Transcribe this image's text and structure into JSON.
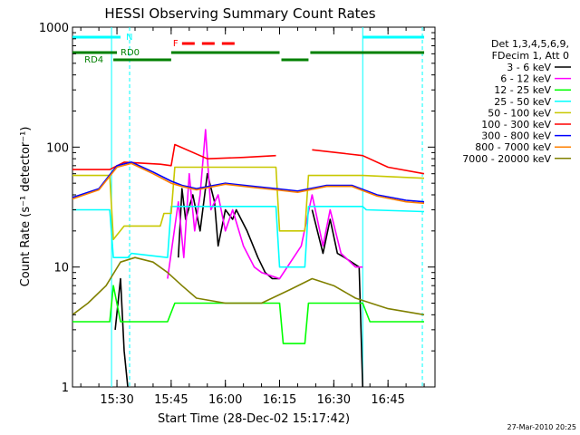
{
  "chart_data": {
    "type": "line",
    "title": "HESSI Observing Summary Count Rates",
    "xlabel": "Start Time (28-Dec-02 15:17:42)",
    "ylabel": "Count Rate (s⁻¹ detector⁻¹)",
    "y_scale": "log",
    "ylim": [
      1,
      1000
    ],
    "xlim_minutes": [
      "15:17:42",
      "16:58:00"
    ],
    "x_ticks": [
      "15:30",
      "15:45",
      "16:00",
      "16:15",
      "16:30",
      "16:45"
    ],
    "y_ticks": [
      "1",
      "10",
      "100",
      "1000"
    ],
    "legend_header": [
      "Det 1,3,4,5,6,9,",
      "FDecim 1, Att 0"
    ],
    "legend_placement": "right",
    "footer_timestamp": "27-Mar-2010 20:25",
    "flags": [
      {
        "label": "N",
        "color": "#00ffff"
      },
      {
        "label": "F",
        "color": "#ff0000"
      },
      {
        "label": "RD0",
        "color": "#008000"
      },
      {
        "label": "RD4",
        "color": "#008000"
      }
    ],
    "series": [
      {
        "name": "3 - 6 keV",
        "color": "#000000",
        "points": [
          [
            "15:17:42",
            null
          ],
          [
            "15:28:00",
            null
          ],
          [
            "15:29:30",
            3
          ],
          [
            "15:31:00",
            8
          ],
          [
            "15:32:00",
            2
          ],
          [
            "15:33:00",
            1
          ],
          [
            "15:46:00",
            null
          ],
          [
            "15:47:00",
            12
          ],
          [
            "15:48:00",
            45
          ],
          [
            "15:49:00",
            25
          ],
          [
            "15:51:00",
            40
          ],
          [
            "15:53:00",
            20
          ],
          [
            "15:55:00",
            60
          ],
          [
            "15:57:00",
            35
          ],
          [
            "15:58:00",
            15
          ],
          [
            "16:00:00",
            30
          ],
          [
            "16:02:00",
            25
          ],
          [
            "16:03:00",
            30
          ],
          [
            "16:06:00",
            20
          ],
          [
            "16:09:00",
            12
          ],
          [
            "16:11:00",
            9
          ],
          [
            "16:13:00",
            8
          ],
          [
            "16:15:00",
            8
          ],
          [
            "16:21:00",
            null
          ],
          [
            "16:24:00",
            30
          ],
          [
            "16:27:00",
            13
          ],
          [
            "16:29:00",
            25
          ],
          [
            "16:31:00",
            13
          ],
          [
            "16:33:00",
            12
          ],
          [
            "16:37:00",
            10
          ],
          [
            "16:38:00",
            1
          ]
        ]
      },
      {
        "name": "6 - 12 keV",
        "color": "#ff00ff",
        "points": [
          [
            "15:44:00",
            8
          ],
          [
            "15:47:00",
            35
          ],
          [
            "15:48:30",
            12
          ],
          [
            "15:50:00",
            60
          ],
          [
            "15:51:30",
            20
          ],
          [
            "15:53:00",
            40
          ],
          [
            "15:54:30",
            140
          ],
          [
            "15:56:00",
            30
          ],
          [
            "15:58:00",
            40
          ],
          [
            "16:00:00",
            20
          ],
          [
            "16:02:00",
            30
          ],
          [
            "16:05:00",
            15
          ],
          [
            "16:08:00",
            10
          ],
          [
            "16:10:00",
            9
          ],
          [
            "16:15:00",
            8
          ],
          [
            "16:21:00",
            15
          ],
          [
            "16:24:00",
            40
          ],
          [
            "16:27:00",
            15
          ],
          [
            "16:29:00",
            30
          ],
          [
            "16:32:00",
            13
          ],
          [
            "16:36:00",
            10
          ],
          [
            "16:38:00",
            10
          ]
        ]
      },
      {
        "name": "12 - 25 keV",
        "color": "#00ff00",
        "points": [
          [
            "15:17:42",
            3.5
          ],
          [
            "15:28:00",
            3.5
          ],
          [
            "15:29:00",
            7
          ],
          [
            "15:31:00",
            3.5
          ],
          [
            "15:37:00",
            3.5
          ],
          [
            "15:44:00",
            3.5
          ],
          [
            "15:46:00",
            5
          ],
          [
            "15:50:00",
            5
          ],
          [
            "16:15:00",
            5
          ],
          [
            "16:16:00",
            2.3
          ],
          [
            "16:22:00",
            2.3
          ],
          [
            "16:23:00",
            5
          ],
          [
            "16:38:00",
            5
          ],
          [
            "16:40:00",
            3.5
          ],
          [
            "16:55:00",
            3.5
          ]
        ]
      },
      {
        "name": "25 - 50 keV",
        "color": "#00ffff",
        "points": [
          [
            "15:17:42",
            30
          ],
          [
            "15:28:00",
            30
          ],
          [
            "15:29:00",
            12
          ],
          [
            "15:33:00",
            12
          ],
          [
            "15:34:00",
            13
          ],
          [
            "15:44:00",
            12
          ],
          [
            "15:45:00",
            32
          ],
          [
            "16:14:00",
            32
          ],
          [
            "16:15:00",
            10
          ],
          [
            "16:22:00",
            10
          ],
          [
            "16:23:00",
            32
          ],
          [
            "16:38:00",
            32
          ],
          [
            "16:39:00",
            30
          ],
          [
            "16:55:00",
            29
          ]
        ]
      },
      {
        "name": "50 - 100 keV",
        "color": "#c8c800",
        "points": [
          [
            "15:17:42",
            58
          ],
          [
            "15:28:00",
            58
          ],
          [
            "15:29:00",
            17
          ],
          [
            "15:32:00",
            22
          ],
          [
            "15:42:00",
            22
          ],
          [
            "15:43:00",
            28
          ],
          [
            "15:45:00",
            28
          ],
          [
            "15:46:00",
            68
          ],
          [
            "16:14:00",
            68
          ],
          [
            "16:15:00",
            20
          ],
          [
            "16:22:00",
            20
          ],
          [
            "16:23:00",
            58
          ],
          [
            "16:38:00",
            58
          ],
          [
            "16:55:00",
            55
          ]
        ]
      },
      {
        "name": "100 - 300 keV",
        "color": "#ff0000",
        "points": [
          [
            "15:17:42",
            65
          ],
          [
            "15:28:00",
            65
          ],
          [
            "15:32:00",
            75
          ],
          [
            "15:42:00",
            72
          ],
          [
            "15:45:00",
            70
          ],
          [
            "15:46:00",
            105
          ],
          [
            "15:55:00",
            80
          ],
          [
            "16:05:00",
            82
          ],
          [
            "16:14:00",
            85
          ],
          [
            "16:15:00",
            null
          ],
          [
            "16:23:00",
            null
          ],
          [
            "16:24:00",
            95
          ],
          [
            "16:38:00",
            85
          ],
          [
            "16:45:00",
            68
          ],
          [
            "16:55:00",
            60
          ]
        ]
      },
      {
        "name": "300 - 800 keV",
        "color": "#0000ff",
        "points": [
          [
            "15:17:42",
            38
          ],
          [
            "15:25:00",
            45
          ],
          [
            "15:30:00",
            70
          ],
          [
            "15:34:00",
            75
          ],
          [
            "15:40:00",
            62
          ],
          [
            "15:45:00",
            52
          ],
          [
            "15:48:00",
            48
          ],
          [
            "15:52:00",
            45
          ],
          [
            "16:00:00",
            50
          ],
          [
            "16:08:00",
            47
          ],
          [
            "16:14:00",
            45
          ],
          [
            "16:20:00",
            43
          ],
          [
            "16:28:00",
            48
          ],
          [
            "16:35:00",
            48
          ],
          [
            "16:42:00",
            40
          ],
          [
            "16:50:00",
            36
          ],
          [
            "16:55:00",
            35
          ]
        ]
      },
      {
        "name": "800 - 7000 keV",
        "color": "#ff8000",
        "points": [
          [
            "15:17:42",
            37
          ],
          [
            "15:25:00",
            44
          ],
          [
            "15:30:00",
            68
          ],
          [
            "15:34:00",
            73
          ],
          [
            "15:40:00",
            60
          ],
          [
            "15:45:00",
            50
          ],
          [
            "15:48:00",
            47
          ],
          [
            "15:52:00",
            44
          ],
          [
            "16:00:00",
            49
          ],
          [
            "16:08:00",
            46
          ],
          [
            "16:14:00",
            44
          ],
          [
            "16:20:00",
            42
          ],
          [
            "16:28:00",
            47
          ],
          [
            "16:35:00",
            47
          ],
          [
            "16:42:00",
            39
          ],
          [
            "16:50:00",
            35
          ],
          [
            "16:55:00",
            34
          ]
        ]
      },
      {
        "name": "7000 - 20000 keV",
        "color": "#808000",
        "points": [
          [
            "15:17:42",
            4
          ],
          [
            "15:22:00",
            5
          ],
          [
            "15:27:00",
            7
          ],
          [
            "15:31:00",
            11
          ],
          [
            "15:35:00",
            12
          ],
          [
            "15:40:00",
            11
          ],
          [
            "15:44:00",
            9
          ],
          [
            "15:48:00",
            7
          ],
          [
            "15:52:00",
            5.5
          ],
          [
            "16:00:00",
            5
          ],
          [
            "16:10:00",
            5
          ],
          [
            "16:18:00",
            6.5
          ],
          [
            "16:24:00",
            8
          ],
          [
            "16:30:00",
            7
          ],
          [
            "16:36:00",
            5.5
          ],
          [
            "16:45:00",
            4.5
          ],
          [
            "16:55:00",
            4
          ]
        ]
      }
    ]
  }
}
